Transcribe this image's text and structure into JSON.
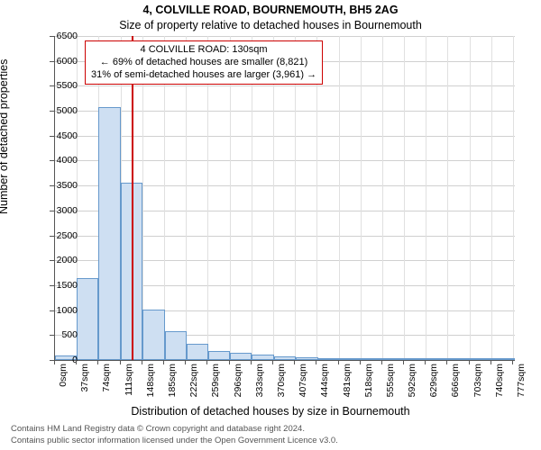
{
  "title_main": "4, COLVILLE ROAD, BOURNEMOUTH, BH5 2AG",
  "title_sub": "Size of property relative to detached houses in Bournemouth",
  "ylabel": "Number of detached properties",
  "xlabel": "Distribution of detached houses by size in Bournemouth",
  "footer_line1": "Contains HM Land Registry data © Crown copyright and database right 2024.",
  "footer_line2": "Contains public sector information licensed under the Open Government Licence v3.0.",
  "chart": {
    "type": "histogram",
    "ylim": [
      0,
      6500
    ],
    "ytick_step": 500,
    "xlim_sqm": [
      0,
      780
    ],
    "xtick_step_sqm": 37,
    "xtick_unit": "sqm",
    "bar_fill": "#cedff2",
    "bar_border": "#6699cc",
    "grid_color": "#d0d0d0",
    "marker_color": "#cc0000",
    "marker_sqm": 130,
    "bars_sqm_bins": [
      {
        "from": 0,
        "to": 37,
        "count": 90
      },
      {
        "from": 37,
        "to": 74,
        "count": 1650
      },
      {
        "from": 74,
        "to": 111,
        "count": 5080
      },
      {
        "from": 111,
        "to": 149,
        "count": 3560
      },
      {
        "from": 149,
        "to": 186,
        "count": 1020
      },
      {
        "from": 186,
        "to": 223,
        "count": 580
      },
      {
        "from": 223,
        "to": 260,
        "count": 330
      },
      {
        "from": 260,
        "to": 297,
        "count": 180
      },
      {
        "from": 297,
        "to": 334,
        "count": 150
      },
      {
        "from": 334,
        "to": 372,
        "count": 110
      },
      {
        "from": 372,
        "to": 409,
        "count": 70
      },
      {
        "from": 409,
        "to": 446,
        "count": 55
      },
      {
        "from": 446,
        "to": 483,
        "count": 15
      },
      {
        "from": 483,
        "to": 520,
        "count": 15
      },
      {
        "from": 520,
        "to": 557,
        "count": 10
      },
      {
        "from": 557,
        "to": 594,
        "count": 8
      },
      {
        "from": 594,
        "to": 632,
        "count": 6
      },
      {
        "from": 632,
        "to": 669,
        "count": 4
      },
      {
        "from": 669,
        "to": 706,
        "count": 4
      },
      {
        "from": 706,
        "to": 743,
        "count": 2
      },
      {
        "from": 743,
        "to": 780,
        "count": 2
      }
    ],
    "annotation": {
      "line1": "4 COLVILLE ROAD: 130sqm",
      "line2": "← 69% of detached houses are smaller (8,821)",
      "line3": "31% of semi-detached houses are larger (3,961) →"
    },
    "title_fontsize": 12.5,
    "label_fontsize": 12.5,
    "tick_fontsize": 10.5,
    "annot_fontsize": 11
  }
}
